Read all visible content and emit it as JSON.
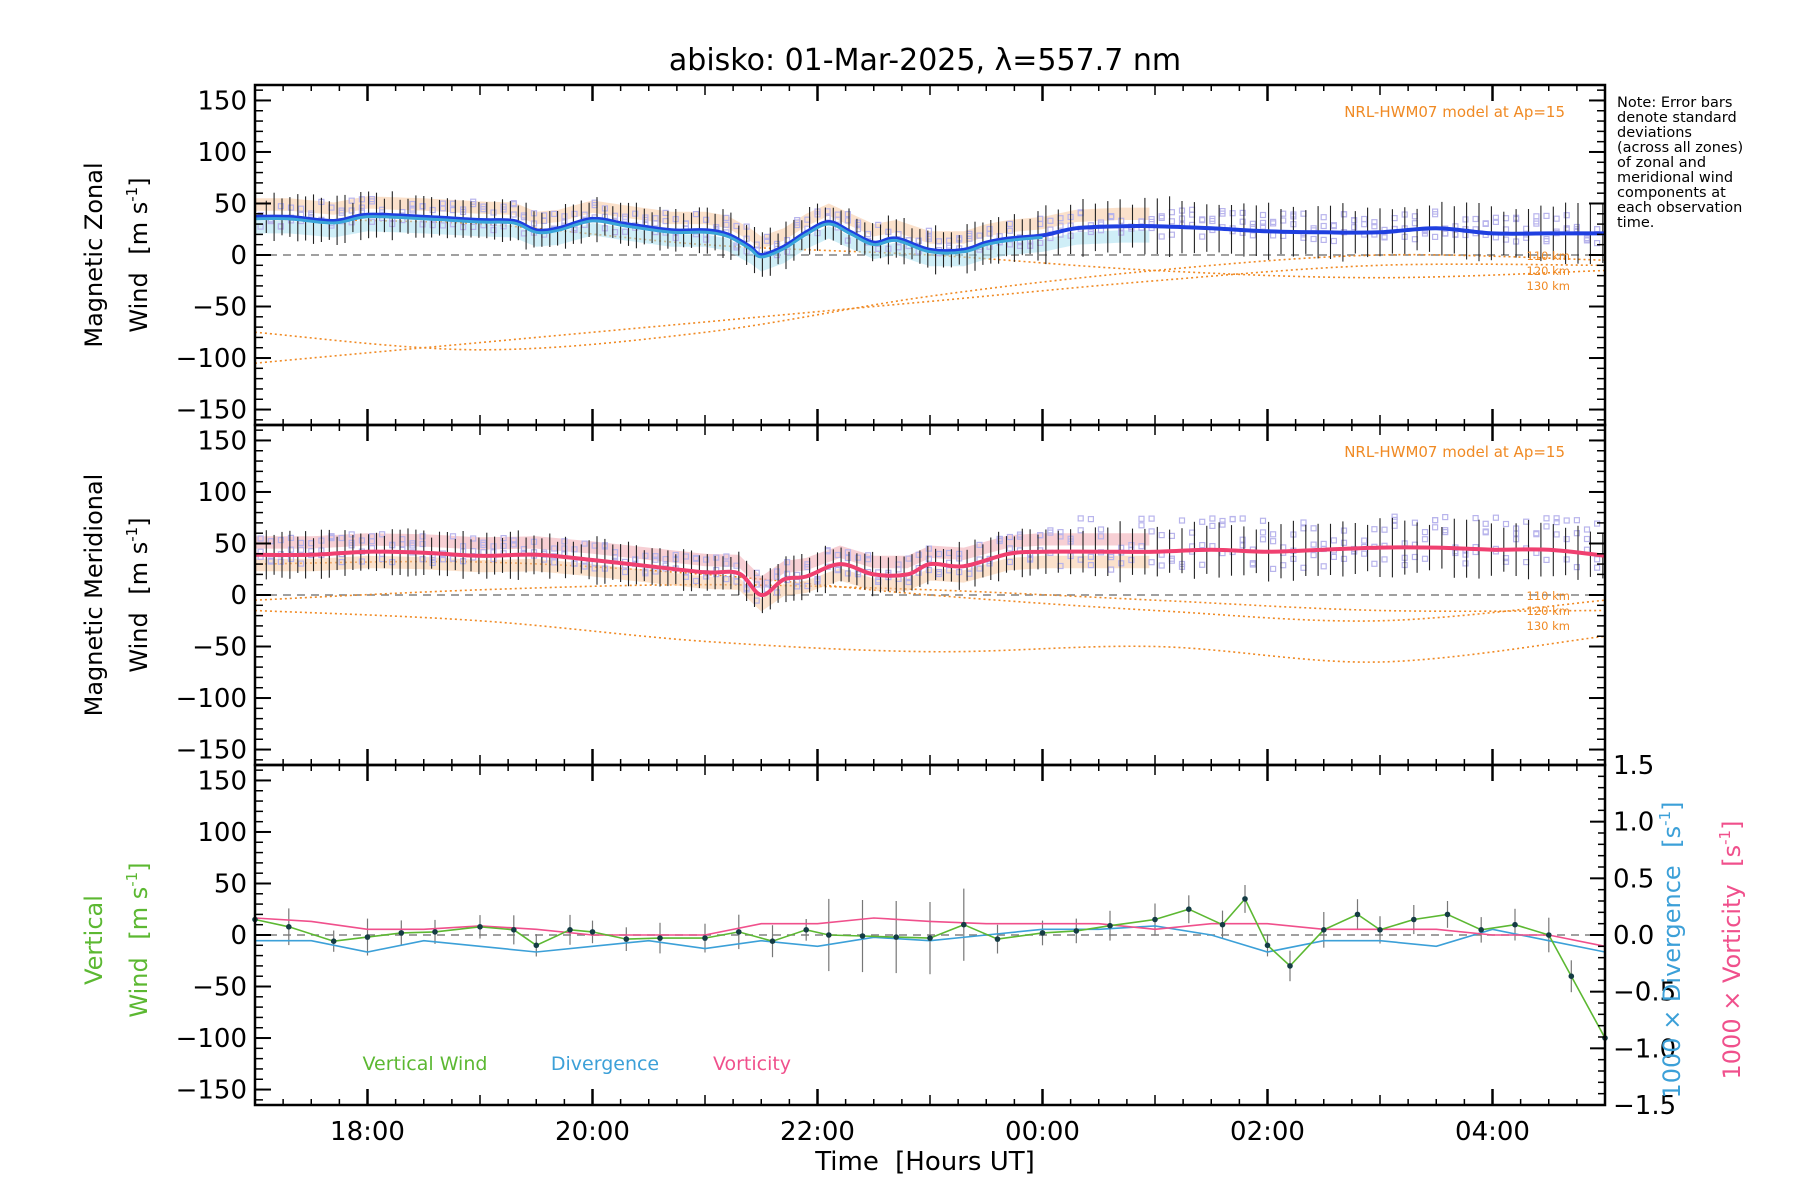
{
  "title": "abisko: 01-Mar-2025, λ=557.7 nm",
  "note_lines": [
    "Note: Error bars",
    "denote standard",
    "deviations",
    "(across all zones)",
    "of zonal and",
    "meridional wind",
    "components at",
    "each observation",
    "time."
  ],
  "colors": {
    "zonal_line": "#1f3fe0",
    "zonal_mean": "#3aa6d8",
    "meridional_line": "#f04070",
    "scatter": "#b8b4ec",
    "model": "#f08a24",
    "band_orange": "#f8c8a0",
    "band_cyan": "#a8e0f0",
    "band_red": "#f0a8b0",
    "vertical": "#5cb832",
    "divergence": "#3ca0d8",
    "vorticity": "#f0508c",
    "axis": "#000000",
    "zero": "#808080"
  },
  "chart_data": [
    {
      "type": "line",
      "panel": "zonal",
      "ylabel_line1": "Magnetic Zonal",
      "ylabel_line2": "Wind",
      "ylabel_units": "[m s",
      "ylabel_exp": "-1",
      "ylabel_close": "]",
      "xlim": [
        17.0,
        29.0
      ],
      "ylim": [
        -165,
        165
      ],
      "yticks": [
        150,
        100,
        50,
        0,
        -50,
        -100,
        -150
      ],
      "tick_labels": [
        "150",
        "100",
        "50",
        "0",
        "−50",
        "−100",
        "−150"
      ],
      "model_label": "NRL-HWM07 model at Ap=15",
      "model_km_labels": [
        "110 km",
        "120 km",
        "130 km"
      ],
      "series": [
        {
          "name": "zonal",
          "x": [
            17.0,
            17.3,
            17.7,
            18.0,
            18.5,
            19.0,
            19.3,
            19.5,
            19.7,
            20.0,
            20.3,
            20.7,
            21.0,
            21.2,
            21.4,
            21.5,
            21.7,
            21.9,
            22.1,
            22.3,
            22.5,
            22.7,
            23.0,
            23.3,
            23.5,
            23.7,
            24.0,
            24.3,
            24.7,
            25.0,
            25.5,
            26.0,
            26.5,
            27.0,
            27.5,
            28.0,
            28.5,
            29.0
          ],
          "y": [
            37,
            37,
            33,
            39,
            37,
            34,
            33,
            24,
            26,
            35,
            30,
            24,
            24,
            20,
            8,
            0,
            8,
            22,
            32,
            22,
            12,
            16,
            5,
            5,
            12,
            16,
            19,
            26,
            28,
            28,
            26,
            23,
            22,
            22,
            26,
            21,
            21,
            21
          ]
        },
        {
          "name": "model-110",
          "x": [
            17.0,
            19.0,
            21.0,
            23.0,
            25.0,
            27.0,
            29.0
          ],
          "y": [
            -75,
            -92,
            -75,
            -40,
            -15,
            0,
            -5
          ]
        },
        {
          "name": "model-120",
          "x": [
            17.0,
            19.0,
            21.0,
            23.0,
            25.0,
            27.0,
            29.0
          ],
          "y": [
            -105,
            -85,
            -65,
            -45,
            -25,
            -10,
            -10
          ]
        },
        {
          "name": "model-130",
          "x": [
            17.0,
            19.0,
            21.0,
            23.0,
            25.0,
            27.0,
            29.0
          ],
          "y": [
            35,
            30,
            10,
            0,
            -15,
            -22,
            -15
          ]
        }
      ]
    },
    {
      "type": "line",
      "panel": "meridional",
      "ylabel_line1": "Magnetic Meridional",
      "ylabel_line2": "Wind",
      "ylabel_units": "[m s",
      "ylabel_exp": "-1",
      "ylabel_close": "]",
      "xlim": [
        17.0,
        29.0
      ],
      "ylim": [
        -165,
        165
      ],
      "yticks": [
        150,
        100,
        50,
        0,
        -50,
        -100,
        -150
      ],
      "tick_labels": [
        "150",
        "100",
        "50",
        "0",
        "−50",
        "−100",
        "−150"
      ],
      "model_label": "NRL-HWM07 model at Ap=15",
      "model_km_labels": [
        "110 km",
        "120 km",
        "130 km"
      ],
      "series": [
        {
          "name": "meridional",
          "x": [
            17.0,
            17.5,
            18.0,
            18.5,
            19.0,
            19.5,
            20.0,
            20.5,
            21.0,
            21.3,
            21.5,
            21.7,
            21.9,
            22.2,
            22.5,
            22.8,
            23.0,
            23.3,
            23.7,
            24.0,
            24.5,
            25.0,
            25.5,
            26.0,
            26.5,
            27.0,
            27.5,
            28.0,
            28.5,
            29.0
          ],
          "y": [
            39,
            39,
            42,
            41,
            38,
            39,
            34,
            28,
            22,
            21,
            0,
            15,
            18,
            30,
            20,
            20,
            30,
            28,
            40,
            42,
            42,
            42,
            44,
            42,
            44,
            46,
            46,
            44,
            44,
            38
          ]
        },
        {
          "name": "model-110",
          "x": [
            17.0,
            19.0,
            21.0,
            23.0,
            25.0,
            27.0,
            29.0
          ],
          "y": [
            30,
            32,
            20,
            0,
            -15,
            -25,
            -5
          ]
        },
        {
          "name": "model-120",
          "x": [
            17.0,
            19.0,
            21.0,
            23.0,
            25.0,
            27.0,
            29.0
          ],
          "y": [
            -15,
            -25,
            -45,
            -55,
            -50,
            -65,
            -40
          ]
        },
        {
          "name": "model-130",
          "x": [
            17.0,
            19.0,
            21.0,
            23.0,
            25.0,
            27.0,
            29.0
          ],
          "y": [
            -5,
            5,
            10,
            5,
            -5,
            -15,
            -15
          ]
        }
      ]
    },
    {
      "type": "line",
      "panel": "vertical",
      "ylabel_line1": "Vertical",
      "ylabel_line2": "Wind",
      "ylabel_units": "[m s",
      "ylabel_exp": "-1",
      "ylabel_close": "]",
      "right_label_div": "1000 × Divergence",
      "right_label_vort": "1000 × Vorticity",
      "right_units": "[s",
      "right_exp": "-1",
      "right_close": "]",
      "xlim": [
        17.0,
        29.0
      ],
      "ylim": [
        -165,
        165
      ],
      "ylim_right": [
        -1.5,
        1.5
      ],
      "yticks": [
        150,
        100,
        50,
        0,
        -50,
        -100,
        -150
      ],
      "tick_labels": [
        "150",
        "100",
        "50",
        "0",
        "−50",
        "−100",
        "−150"
      ],
      "yticks_right": [
        1.5,
        1.0,
        0.5,
        0.0,
        -0.5,
        -1.0,
        -1.5
      ],
      "tick_labels_right": [
        "1.5",
        "1.0",
        "0.5",
        "0.0",
        "−0.5",
        "−1.0",
        "−1.5"
      ],
      "legend": [
        "Vertical Wind",
        "Divergence",
        "Vorticity"
      ],
      "series": [
        {
          "name": "vertical",
          "x": [
            17.0,
            17.3,
            17.7,
            18.0,
            18.3,
            18.6,
            19.0,
            19.3,
            19.5,
            19.8,
            20.0,
            20.3,
            20.6,
            21.0,
            21.3,
            21.6,
            21.9,
            22.1,
            22.4,
            22.7,
            23.0,
            23.3,
            23.6,
            24.0,
            24.3,
            24.6,
            25.0,
            25.3,
            25.6,
            25.8,
            26.0,
            26.2,
            26.5,
            26.8,
            27.0,
            27.3,
            27.6,
            27.9,
            28.2,
            28.5,
            28.7,
            29.0
          ],
          "y": [
            15,
            8,
            -6,
            -2,
            2,
            3,
            8,
            5,
            -10,
            5,
            3,
            -4,
            -3,
            -3,
            3,
            -6,
            5,
            0,
            -1,
            -2,
            -3,
            10,
            -4,
            2,
            4,
            9,
            15,
            25,
            10,
            35,
            -10,
            -30,
            5,
            20,
            5,
            15,
            20,
            5,
            10,
            0,
            -40,
            -100
          ]
        },
        {
          "name": "divergence",
          "x": [
            17.0,
            17.5,
            18.0,
            18.5,
            19.0,
            19.5,
            20.0,
            20.5,
            21.0,
            21.5,
            22.0,
            22.5,
            23.0,
            23.5,
            24.0,
            24.5,
            25.0,
            25.5,
            26.0,
            26.5,
            27.0,
            27.5,
            28.0,
            28.5,
            29.0
          ],
          "y": [
            -0.05,
            -0.05,
            -0.15,
            -0.05,
            -0.1,
            -0.15,
            -0.1,
            -0.05,
            -0.12,
            -0.05,
            -0.1,
            -0.02,
            -0.05,
            0.0,
            0.05,
            0.05,
            0.08,
            0.0,
            -0.15,
            -0.05,
            -0.05,
            -0.1,
            0.05,
            -0.05,
            -0.15
          ]
        },
        {
          "name": "vorticity",
          "x": [
            17.0,
            17.5,
            18.0,
            18.5,
            19.0,
            19.5,
            20.0,
            20.5,
            21.0,
            21.5,
            22.0,
            22.5,
            23.0,
            23.5,
            24.0,
            24.5,
            25.0,
            25.5,
            26.0,
            26.5,
            27.0,
            27.5,
            28.0,
            28.5,
            29.0
          ],
          "y": [
            0.15,
            0.12,
            0.05,
            0.05,
            0.08,
            0.05,
            0.0,
            0.0,
            0.0,
            0.1,
            0.1,
            0.15,
            0.12,
            0.1,
            0.1,
            0.1,
            0.05,
            0.1,
            0.1,
            0.05,
            0.05,
            0.05,
            0.0,
            0.0,
            -0.1
          ]
        }
      ]
    }
  ],
  "xaxis": {
    "ticks": [
      18,
      20,
      22,
      24,
      26,
      28
    ],
    "tick_labels": [
      "18:00",
      "20:00",
      "22:00",
      "00:00",
      "02:00",
      "04:00"
    ],
    "label_text": "Time",
    "label_units": "[Hours UT]"
  }
}
